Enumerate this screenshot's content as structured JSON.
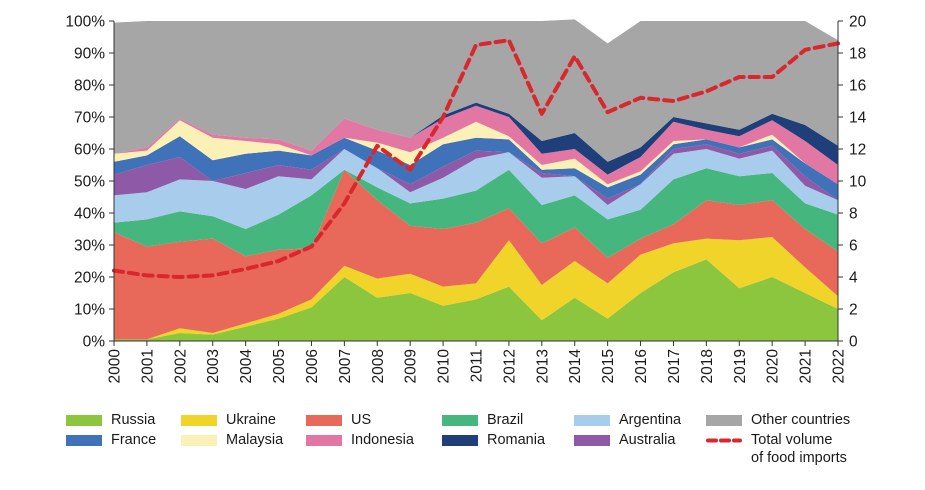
{
  "chart_data": {
    "type": "area",
    "x": [
      "2000",
      "2001",
      "2002",
      "2003",
      "2004",
      "2005",
      "2006",
      "2007",
      "2008",
      "2009",
      "2010",
      "2011",
      "2012",
      "2013",
      "2014",
      "2015",
      "2016",
      "2017",
      "2018",
      "2019",
      "2020",
      "2021",
      "2022"
    ],
    "y_left": {
      "ticks": [
        "0%",
        "10%",
        "20%",
        "30%",
        "40%",
        "50%",
        "60%",
        "70%",
        "80%",
        "90%",
        "100%"
      ],
      "range": [
        0,
        100
      ],
      "unit": "%"
    },
    "y_right": {
      "ticks": [
        "0",
        "2",
        "4",
        "6",
        "8",
        "10",
        "12",
        "14",
        "16",
        "18",
        "20"
      ],
      "range": [
        0,
        20
      ]
    },
    "grid": false,
    "legend_position": "bottom",
    "series": [
      {
        "name": "Russia",
        "color": "#8cc63f",
        "values": [
          0.5,
          0.5,
          2.5,
          2,
          4.5,
          7,
          10.5,
          20,
          13.5,
          15,
          11,
          13,
          17,
          6.5,
          13.5,
          7,
          15,
          21.5,
          25.5,
          16.5,
          20,
          15,
          10
        ]
      },
      {
        "name": "Ukraine",
        "color": "#f0d42a",
        "values": [
          0,
          0,
          1.5,
          0.5,
          1,
          1.5,
          2.5,
          3.5,
          6,
          6,
          6,
          5,
          14.5,
          11,
          11.5,
          11,
          12,
          9,
          6.5,
          15,
          12.5,
          8,
          4
        ]
      },
      {
        "name": "US",
        "color": "#e8695a",
        "values": [
          33.5,
          29,
          27,
          29.5,
          21,
          20,
          16,
          30,
          24.5,
          15,
          18,
          19,
          10,
          13,
          10.5,
          8,
          5,
          6,
          12,
          11,
          11.5,
          12,
          14
        ]
      },
      {
        "name": "Brazil",
        "color": "#45b67d",
        "values": [
          3,
          8.5,
          9.5,
          7,
          8.5,
          11,
          16.5,
          0,
          4,
          7,
          9.5,
          10,
          12,
          12,
          10,
          12,
          9,
          14,
          10,
          9,
          8.5,
          8,
          11.5
        ]
      },
      {
        "name": "Argentina",
        "color": "#a8cceb",
        "values": [
          8.5,
          8.5,
          10,
          11,
          12.5,
          12,
          5,
          6.5,
          6,
          3.5,
          6.5,
          10,
          5.5,
          8.5,
          6,
          4.5,
          8,
          8,
          6,
          5.5,
          7,
          5.5,
          4.5
        ]
      },
      {
        "name": "Australia",
        "color": "#8e5aa8",
        "values": [
          6.5,
          8.5,
          7,
          0,
          5,
          3.5,
          3,
          0,
          0,
          2.5,
          3.5,
          2.5,
          0,
          1.5,
          0,
          2,
          0,
          1.5,
          1.5,
          1.5,
          1.5,
          3,
          0
        ]
      },
      {
        "name": "France",
        "color": "#3f72b8",
        "values": [
          4,
          3,
          6.5,
          6.5,
          6,
          4.5,
          4.5,
          3.5,
          5.5,
          6,
          7,
          4,
          4,
          1,
          2.5,
          3.5,
          3,
          1.5,
          1.5,
          2,
          2,
          4,
          5
        ]
      },
      {
        "name": "Malaysia",
        "color": "#fbf0b5",
        "values": [
          2.5,
          1.5,
          5,
          7,
          4,
          2,
          0,
          0,
          2.5,
          4,
          2,
          5,
          1,
          1.5,
          3,
          1,
          1,
          1,
          0,
          0,
          1.5,
          0,
          0
        ]
      },
      {
        "name": "Indonesia",
        "color": "#e277a4",
        "values": [
          0,
          1,
          0.5,
          1,
          1,
          1.5,
          1.5,
          6,
          4,
          4.5,
          6,
          5,
          6,
          3.5,
          3,
          3,
          4.5,
          6,
          3,
          3.5,
          4.5,
          7,
          6
        ]
      },
      {
        "name": "Romania",
        "color": "#1e3f7a",
        "values": [
          0,
          0,
          0,
          0,
          0,
          0,
          0,
          0,
          0,
          0,
          1,
          1,
          1,
          4,
          5,
          4,
          3,
          1.5,
          2,
          2,
          2,
          5,
          6
        ]
      },
      {
        "name": "Other countries",
        "color": "#a6a6a6",
        "values": [
          41,
          39.5,
          30.5,
          35.5,
          36.5,
          37,
          40.5,
          30.5,
          34,
          36.5,
          29.5,
          25.5,
          29,
          37.5,
          35.5,
          37,
          39.5,
          30,
          32,
          34,
          29,
          32.5,
          33
        ]
      }
    ],
    "line": {
      "name": "Total volume of food imports",
      "color": "#d8282e",
      "axis": "right",
      "values": [
        4.4,
        4.1,
        4.0,
        4.1,
        4.5,
        5.0,
        5.9,
        8.6,
        12.2,
        10.7,
        14.0,
        18.5,
        18.8,
        14.2,
        17.8,
        14.3,
        15.2,
        15.0,
        15.6,
        16.5,
        16.5,
        18.2,
        18.6
      ]
    }
  },
  "legend": {
    "items": [
      {
        "label": "Russia",
        "color": "#8cc63f"
      },
      {
        "label": "Ukraine",
        "color": "#f0d42a"
      },
      {
        "label": "US",
        "color": "#e8695a"
      },
      {
        "label": "Brazil",
        "color": "#45b67d"
      },
      {
        "label": "Argentina",
        "color": "#a8cceb"
      },
      {
        "label": "Other countries",
        "color": "#a6a6a6"
      },
      {
        "label": "France",
        "color": "#3f72b8"
      },
      {
        "label": "Malaysia",
        "color": "#fbf0b5"
      },
      {
        "label": "Indonesia",
        "color": "#e277a4"
      },
      {
        "label": "Romania",
        "color": "#1e3f7a"
      },
      {
        "label": "Australia",
        "color": "#8e5aa8"
      }
    ],
    "line_label_1": "Total volume",
    "line_label_2": "of food imports"
  }
}
